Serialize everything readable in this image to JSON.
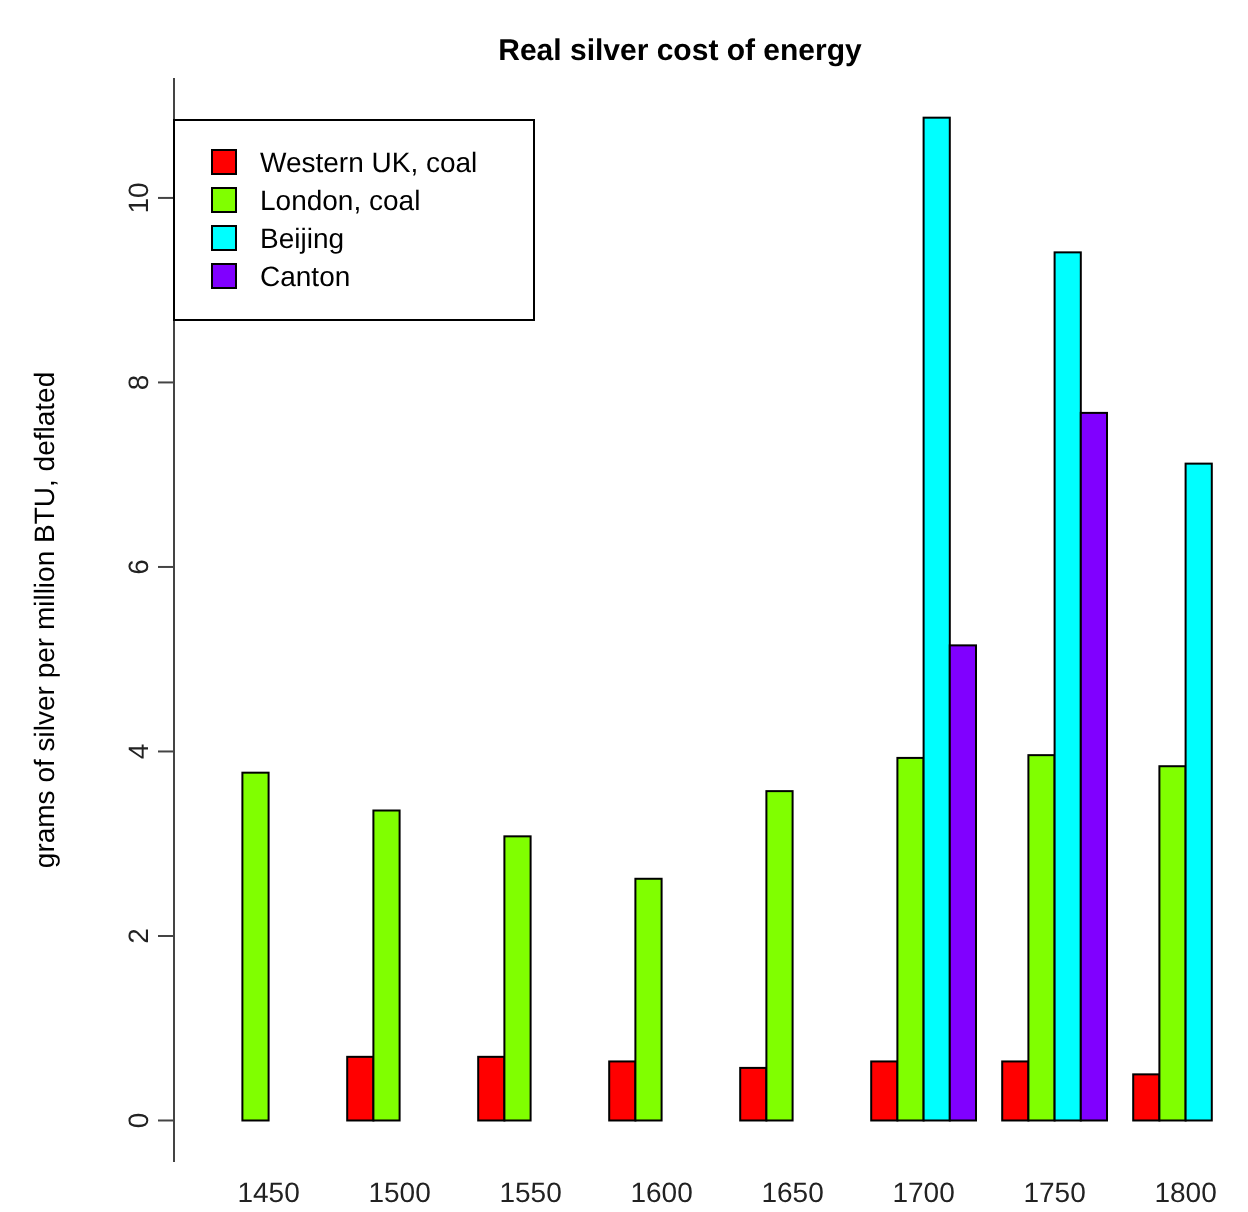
{
  "chart_data": {
    "type": "bar",
    "title": "Real silver cost of energy",
    "ylabel": "grams of silver per million BTU, deflated",
    "categories": [
      "1450",
      "1500",
      "1550",
      "1600",
      "1650",
      "1700",
      "1750",
      "1800"
    ],
    "series": [
      {
        "name": "Western UK, coal",
        "color": "#ff0000",
        "values": [
          null,
          0.69,
          0.69,
          0.64,
          0.57,
          0.64,
          0.64,
          0.5
        ]
      },
      {
        "name": "London, coal",
        "color": "#80ff00",
        "values": [
          3.77,
          3.36,
          3.08,
          2.62,
          3.57,
          3.93,
          3.96,
          3.84
        ]
      },
      {
        "name": "Beijing",
        "color": "#00ffff",
        "values": [
          null,
          null,
          null,
          null,
          null,
          10.87,
          9.41,
          7.12
        ]
      },
      {
        "name": "Canton",
        "color": "#8000ff",
        "values": [
          null,
          null,
          null,
          null,
          null,
          5.15,
          7.67,
          null
        ]
      }
    ],
    "ylim": [
      -0.45,
      11.3
    ],
    "yticks": [
      0,
      2,
      4,
      6,
      8,
      10
    ],
    "legend": "top left",
    "grid": false
  }
}
